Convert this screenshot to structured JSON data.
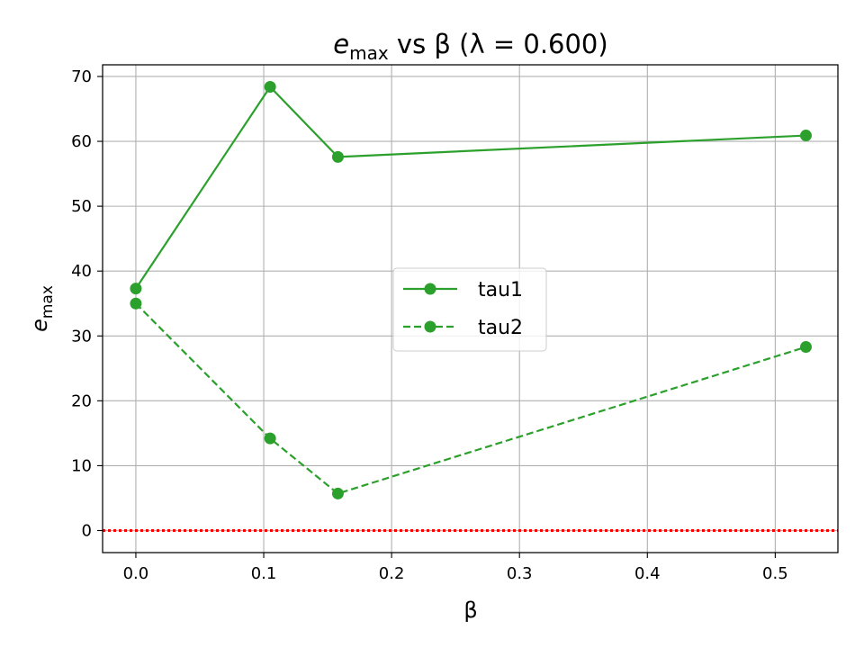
{
  "chart_data": {
    "type": "line",
    "title": {
      "main": "e",
      "sub": "max",
      "rest": " vs β (λ = 0.600)"
    },
    "xlabel": "β",
    "ylabel": {
      "main": "e",
      "sub": "max"
    },
    "xlim": [
      -0.026,
      0.549
    ],
    "ylim": [
      -3.4,
      71.8
    ],
    "xticks": [
      0.0,
      0.1,
      0.2,
      0.3,
      0.4,
      0.5
    ],
    "xtick_labels": [
      "0.0",
      "0.1",
      "0.2",
      "0.3",
      "0.4",
      "0.5"
    ],
    "yticks": [
      0,
      10,
      20,
      30,
      40,
      50,
      60,
      70
    ],
    "ytick_labels": [
      "0",
      "10",
      "20",
      "30",
      "40",
      "50",
      "60",
      "70"
    ],
    "grid": true,
    "x": [
      0.0,
      0.105,
      0.158,
      0.524
    ],
    "series": [
      {
        "name": "tau1",
        "values": [
          37.3,
          68.4,
          57.6,
          60.9
        ],
        "color": "#2ca02c",
        "linestyle": "solid",
        "marker": "circle"
      },
      {
        "name": "tau2",
        "values": [
          35.0,
          14.2,
          5.7,
          28.3
        ],
        "color": "#2ca02c",
        "linestyle": "dashed",
        "marker": "circle"
      }
    ],
    "reference_lines": [
      {
        "axis": "y",
        "value": 0,
        "color": "#ff0000",
        "linestyle": "dotted"
      }
    ],
    "legend": {
      "position": "center"
    }
  }
}
